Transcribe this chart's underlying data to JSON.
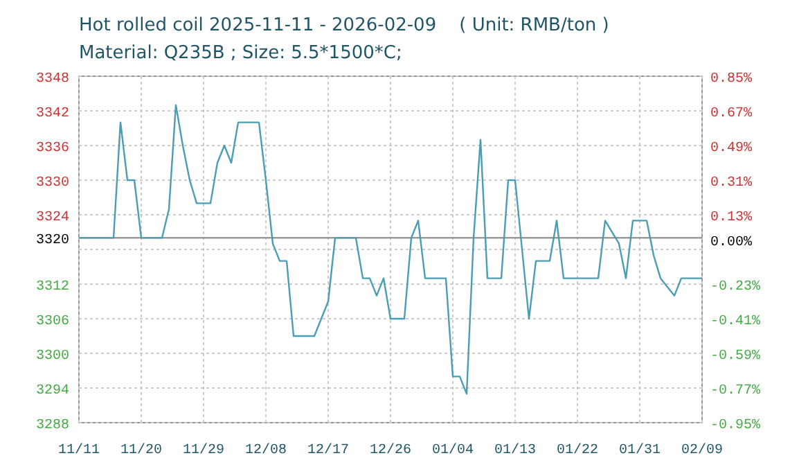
{
  "chart_data": {
    "type": "line",
    "title": "Hot rolled coil 2025-11-11 - 2026-02-09    ( Unit: RMB/ton )",
    "subtitle": "Material: Q235B ; Size: 5.5*1500*C;",
    "x": [
      "2025-11-11",
      "2025-11-16",
      "2025-11-17",
      "2025-11-18",
      "2025-11-19",
      "2025-11-20",
      "2025-11-23",
      "2025-11-24",
      "2025-11-25",
      "2025-11-26",
      "2025-11-27",
      "2025-11-28",
      "2025-11-30",
      "2025-12-01",
      "2025-12-02",
      "2025-12-03",
      "2025-12-04",
      "2025-12-07",
      "2025-12-08",
      "2025-12-09",
      "2025-12-10",
      "2025-12-11",
      "2025-12-12",
      "2025-12-15",
      "2025-12-16",
      "2025-12-17",
      "2025-12-18",
      "2025-12-21",
      "2025-12-22",
      "2025-12-23",
      "2025-12-24",
      "2025-12-25",
      "2025-12-26",
      "2025-12-28",
      "2025-12-29",
      "2025-12-30",
      "2025-12-31",
      "2026-01-03",
      "2026-01-04",
      "2026-01-05",
      "2026-01-06",
      "2026-01-07",
      "2026-01-08",
      "2026-01-09",
      "2026-01-11",
      "2026-01-12",
      "2026-01-13",
      "2026-01-15",
      "2026-01-16",
      "2026-01-18",
      "2026-01-19",
      "2026-01-20",
      "2026-01-25",
      "2026-01-26",
      "2026-01-28",
      "2026-01-29",
      "2026-01-30",
      "2026-02-01",
      "2026-02-02",
      "2026-02-03",
      "2026-02-05",
      "2026-02-06",
      "2026-02-09"
    ],
    "series": [
      {
        "color": "#4a9db3",
        "values": [
          3320,
          3320,
          3340,
          3330,
          3330,
          3320,
          3320,
          3325,
          3343,
          3336,
          3330,
          3326,
          3326,
          3333,
          3336,
          3333,
          3340,
          3340,
          3330,
          3319,
          3316,
          3316,
          3303,
          3303,
          3306,
          3309,
          3320,
          3320,
          3313,
          3313,
          3310,
          3313,
          3306,
          3306,
          3320,
          3323,
          3313,
          3313,
          3296,
          3296,
          3293,
          3320,
          3337,
          3313,
          3313,
          3330,
          3330,
          3306,
          3316,
          3316,
          3323,
          3313,
          3313,
          3323,
          3319,
          3313,
          3323,
          3323,
          3317,
          3313,
          3310,
          3313,
          3313
        ]
      }
    ],
    "xlim": [
      "2025-11-11",
      "2026-02-09"
    ],
    "xticks": [
      {
        "value": "2025-11-11",
        "label": "11/11"
      },
      {
        "value": "2025-11-20",
        "label": "11/20"
      },
      {
        "value": "2025-11-29",
        "label": "11/29"
      },
      {
        "value": "2025-12-08",
        "label": "12/08"
      },
      {
        "value": "2025-12-17",
        "label": "12/17"
      },
      {
        "value": "2025-12-26",
        "label": "12/26"
      },
      {
        "value": "2026-01-04",
        "label": "01/04"
      },
      {
        "value": "2026-01-13",
        "label": "01/13"
      },
      {
        "value": "2026-01-22",
        "label": "01/22"
      },
      {
        "value": "2026-01-31",
        "label": "01/31"
      },
      {
        "value": "2026-02-09",
        "label": "02/09"
      }
    ],
    "ylim": [
      3288,
      3348
    ],
    "yticks": [
      3288,
      3294,
      3300,
      3306,
      3312,
      {
        "value": 3318,
        "label": null
      },
      3320,
      3324,
      3330,
      3336,
      3342,
      3348
    ],
    "y2lim": [
      -0.95,
      0.85
    ],
    "y2ticks": [
      {
        "value": -0.95,
        "label": "-0.95%"
      },
      {
        "value": -0.77,
        "label": "-0.77%"
      },
      {
        "value": -0.59,
        "label": "-0.59%"
      },
      {
        "value": -0.41,
        "label": "-0.41%"
      },
      {
        "value": -0.23,
        "label": "-0.23%"
      },
      {
        "value": 0,
        "label": "0.00%"
      },
      {
        "value": 0.13,
        "label": "0.13%"
      },
      {
        "value": 0.31,
        "label": "0.31%"
      },
      {
        "value": 0.49,
        "label": "0.49%"
      },
      {
        "value": 0.67,
        "label": "0.67%"
      },
      {
        "value": 0.85,
        "label": "0.85%"
      }
    ],
    "ref_lines": [
      {
        "axis": "y",
        "value": 3320,
        "color": "#888888"
      }
    ],
    "grid": true,
    "marker": "none",
    "line_style": "solid"
  }
}
